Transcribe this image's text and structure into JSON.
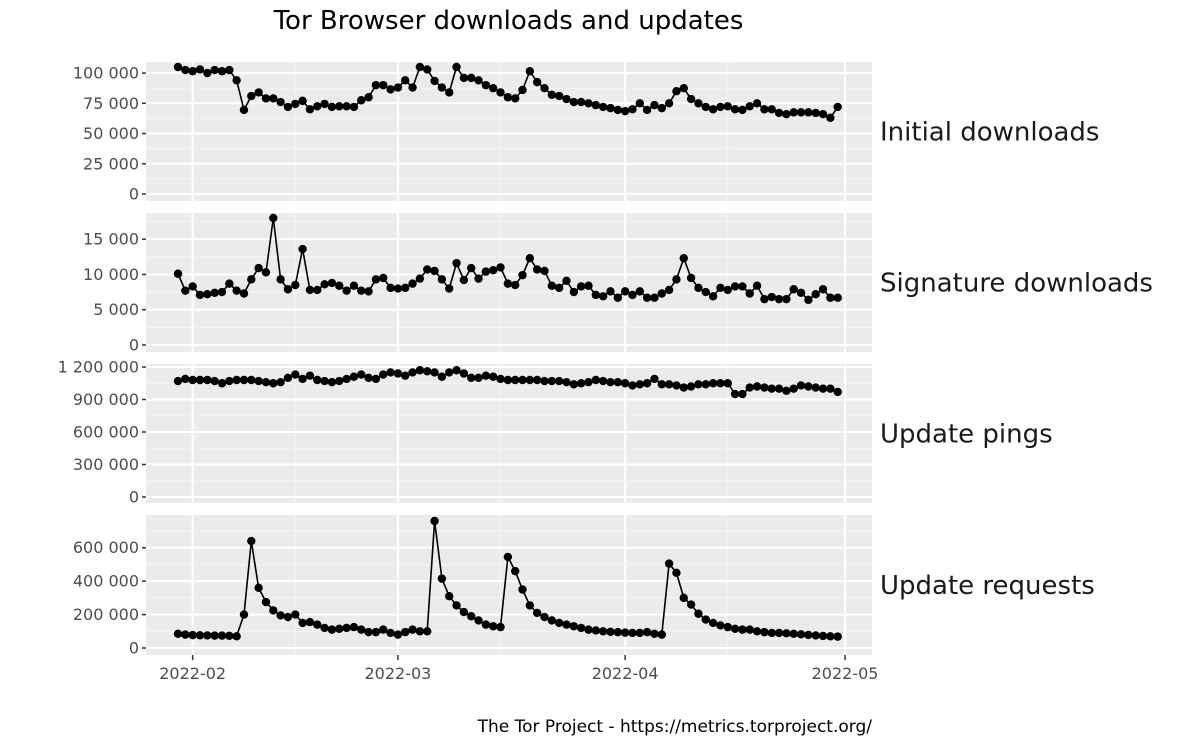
{
  "title": "Tor Browser downloads and updates",
  "caption": "The Tor Project - https://metrics.torproject.org/",
  "chart_data": {
    "type": "line",
    "title": "Tor Browser downloads and updates",
    "xlabel": "",
    "ylabel": "",
    "x_start": "2022-01-30",
    "x_end": "2022-04-29",
    "x_ticks": [
      "2022-02",
      "2022-03",
      "2022-04",
      "2022-05"
    ],
    "grid": true,
    "legend": "none (facet strip labels on right)",
    "panels": [
      {
        "name": "Initial downloads",
        "ylim": [
          0,
          105000
        ],
        "y_ticks": [
          0,
          25000,
          50000,
          75000,
          100000
        ],
        "y_tick_labels": [
          "0",
          "25 000",
          "50 000",
          "75 000",
          "100 000"
        ],
        "values": [
          105000,
          102500,
          101500,
          103000,
          100000,
          102500,
          101500,
          102500,
          94000,
          69500,
          81000,
          84000,
          79000,
          79000,
          76000,
          72000,
          74500,
          77000,
          70000,
          72500,
          74500,
          72000,
          72500,
          72500,
          72000,
          77500,
          80000,
          90000,
          90000,
          86500,
          88000,
          94000,
          88000,
          105000,
          103000,
          93500,
          88000,
          84000,
          105000,
          96000,
          96000,
          94000,
          90000,
          87500,
          84000,
          80000,
          79000,
          86000,
          101500,
          92500,
          87500,
          82000,
          81000,
          78500,
          76000,
          76000,
          75000,
          73500,
          72000,
          71000,
          69500,
          68500,
          70000,
          75000,
          69500,
          73500,
          71000,
          75000,
          85000,
          87500,
          78500,
          75000,
          72000,
          70000,
          72000,
          72500,
          70000,
          69500,
          72500,
          75000,
          70000,
          70000,
          67000,
          66000,
          67500,
          67500,
          67500,
          67000,
          66000,
          63000,
          72000
        ]
      },
      {
        "name": "Signature downloads",
        "ylim": [
          0,
          18000
        ],
        "y_ticks": [
          0,
          5000,
          10000,
          15000
        ],
        "y_tick_labels": [
          "0",
          "5 000",
          "10 000",
          "15 000"
        ],
        "values": [
          10100,
          7700,
          8300,
          7100,
          7200,
          7400,
          7500,
          8700,
          7700,
          7300,
          9300,
          10900,
          10300,
          18000,
          9300,
          7900,
          8500,
          13600,
          7800,
          7800,
          8600,
          8800,
          8400,
          7700,
          8400,
          7700,
          7600,
          9300,
          9500,
          8100,
          8000,
          8100,
          8700,
          9400,
          10700,
          10500,
          9300,
          8000,
          11600,
          9200,
          10900,
          9400,
          10400,
          10600,
          11000,
          8700,
          8500,
          9900,
          12300,
          10700,
          10500,
          8400,
          8100,
          9100,
          7500,
          8300,
          8400,
          7100,
          6900,
          7600,
          6700,
          7600,
          7100,
          7600,
          6700,
          6700,
          7300,
          7800,
          9300,
          12300,
          9500,
          8100,
          7500,
          6900,
          8100,
          7800,
          8300,
          8300,
          7300,
          8400,
          6500,
          6800,
          6500,
          6500,
          7900,
          7400,
          6400,
          7200,
          7900,
          6700,
          6700
        ]
      },
      {
        "name": "Update pings",
        "ylim": [
          0,
          1200000
        ],
        "y_ticks": [
          0,
          300000,
          600000,
          900000,
          1200000
        ],
        "y_tick_labels": [
          "0",
          "300 000",
          "600 000",
          "900 000",
          "1 200 000"
        ],
        "values": [
          1070000,
          1090000,
          1080000,
          1080000,
          1080000,
          1070000,
          1050000,
          1070000,
          1080000,
          1080000,
          1080000,
          1070000,
          1060000,
          1050000,
          1060000,
          1100000,
          1130000,
          1090000,
          1120000,
          1080000,
          1070000,
          1060000,
          1070000,
          1090000,
          1110000,
          1130000,
          1100000,
          1090000,
          1130000,
          1150000,
          1140000,
          1120000,
          1150000,
          1170000,
          1160000,
          1150000,
          1110000,
          1150000,
          1170000,
          1140000,
          1100000,
          1100000,
          1120000,
          1110000,
          1090000,
          1080000,
          1080000,
          1080000,
          1080000,
          1080000,
          1070000,
          1070000,
          1070000,
          1060000,
          1040000,
          1050000,
          1060000,
          1080000,
          1070000,
          1060000,
          1060000,
          1050000,
          1030000,
          1040000,
          1050000,
          1090000,
          1040000,
          1040000,
          1030000,
          1010000,
          1020000,
          1040000,
          1040000,
          1050000,
          1050000,
          1050000,
          950000,
          950000,
          1010000,
          1020000,
          1010000,
          1000000,
          1000000,
          980000,
          1000000,
          1030000,
          1020000,
          1010000,
          1000000,
          1000000,
          970000
        ]
      },
      {
        "name": "Update requests",
        "ylim": [
          0,
          760000
        ],
        "y_ticks": [
          0,
          200000,
          400000,
          600000
        ],
        "y_tick_labels": [
          "0",
          "200 000",
          "400 000",
          "600 000"
        ],
        "values": [
          85000,
          80000,
          77000,
          76000,
          75000,
          74000,
          74000,
          73000,
          70000,
          200000,
          640000,
          360000,
          275000,
          225000,
          195000,
          185000,
          200000,
          150000,
          155000,
          140000,
          120000,
          110000,
          115000,
          120000,
          125000,
          110000,
          95000,
          95000,
          110000,
          90000,
          80000,
          95000,
          110000,
          100000,
          100000,
          760000,
          415000,
          310000,
          255000,
          215000,
          190000,
          165000,
          140000,
          130000,
          125000,
          545000,
          460000,
          350000,
          255000,
          210000,
          185000,
          165000,
          150000,
          140000,
          130000,
          120000,
          110000,
          105000,
          100000,
          97000,
          95000,
          92000,
          90000,
          90000,
          95000,
          85000,
          80000,
          505000,
          450000,
          300000,
          260000,
          205000,
          170000,
          150000,
          135000,
          125000,
          115000,
          110000,
          110000,
          100000,
          95000,
          90000,
          90000,
          88000,
          85000,
          82000,
          78000,
          75000,
          72000,
          70000,
          68000
        ]
      }
    ]
  }
}
